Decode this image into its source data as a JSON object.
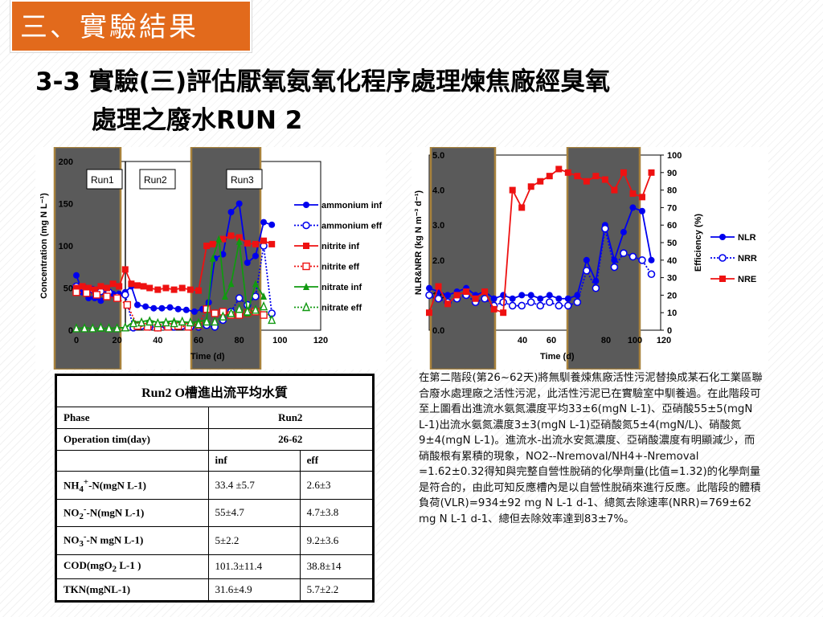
{
  "section": {
    "label": "三、實驗結果"
  },
  "title": {
    "line1": "3-3 實驗(三)評估厭氧氨氧化程序處理煉焦廠經臭氧",
    "line2": "處理之廢水RUN 2"
  },
  "chart_left": {
    "type": "line",
    "ylabel": "Concentration (mg N L⁻¹)",
    "xlabel": "Time (d)",
    "yticks": [
      "200",
      "150",
      "100",
      "50",
      "0"
    ],
    "xticks": [
      "0",
      "20",
      "40",
      "60",
      "80",
      "100",
      "120"
    ],
    "run_labels": [
      "Run1",
      "Run2",
      "Run3"
    ],
    "legend": [
      "ammonium inf",
      "ammonium eff",
      "nitrite inf",
      "nitrite eff",
      "nitrate inf",
      "nitrate eff"
    ],
    "colors": {
      "blue": "#0000ee",
      "red": "#ee1111",
      "green": "#119911"
    },
    "series": [
      {
        "name": "ammonium inf",
        "x": [
          0,
          3,
          6,
          9,
          12,
          15,
          18,
          21,
          24,
          27,
          30,
          34,
          38,
          42,
          46,
          50,
          54,
          58,
          62,
          65,
          68,
          72,
          76,
          80,
          84,
          88,
          92,
          96
        ],
        "values": [
          65,
          45,
          38,
          38,
          35,
          40,
          43,
          43,
          45,
          52,
          30,
          28,
          26,
          26,
          27,
          25,
          24,
          22,
          25,
          33,
          85,
          90,
          140,
          150,
          80,
          88,
          128,
          125
        ]
      },
      {
        "name": "ammonium eff",
        "x": [
          0,
          4,
          8,
          12,
          16,
          20,
          24,
          28,
          32,
          36,
          40,
          44,
          48,
          52,
          56,
          60,
          64,
          68,
          72,
          76,
          80,
          84,
          88,
          92,
          96
        ],
        "values": [
          52,
          50,
          48,
          46,
          45,
          40,
          42,
          3,
          5,
          4,
          3,
          5,
          4,
          5,
          4,
          4,
          6,
          4,
          12,
          22,
          38,
          30,
          40,
          100,
          20
        ]
      },
      {
        "name": "nitrite inf",
        "x": [
          0,
          3,
          6,
          9,
          12,
          15,
          18,
          21,
          24,
          27,
          30,
          33,
          36,
          40,
          44,
          48,
          52,
          56,
          60,
          64,
          67,
          72,
          76,
          80,
          84,
          88,
          92,
          96
        ],
        "values": [
          50,
          52,
          50,
          48,
          52,
          50,
          55,
          52,
          72,
          55,
          53,
          52,
          50,
          48,
          50,
          48,
          50,
          48,
          47,
          100,
          102,
          108,
          112,
          110,
          103,
          102,
          106,
          102
        ]
      },
      {
        "name": "nitrite eff",
        "x": [
          0,
          5,
          10,
          15,
          20,
          25,
          30,
          35,
          40,
          45,
          50,
          55,
          60,
          64,
          68,
          72,
          76,
          80,
          84,
          88,
          92
        ],
        "values": [
          45,
          44,
          42,
          40,
          38,
          30,
          5,
          4,
          3,
          4,
          5,
          4,
          6,
          25,
          20,
          22,
          18,
          18,
          20,
          22,
          18
        ]
      },
      {
        "name": "nitrate inf",
        "x": [
          0,
          4,
          8,
          12,
          16,
          20,
          24,
          28,
          32,
          36,
          40,
          44,
          48,
          52,
          56,
          60,
          64,
          67,
          70,
          73,
          76,
          80,
          84,
          88,
          92
        ],
        "values": [
          2,
          3,
          2,
          2,
          2,
          3,
          3,
          10,
          10,
          12,
          9,
          10,
          11,
          10,
          9,
          10,
          12,
          85,
          108,
          40,
          55,
          105,
          20,
          55,
          40
        ]
      },
      {
        "name": "nitrate eff",
        "x": [
          0,
          4,
          8,
          12,
          16,
          20,
          24,
          28,
          32,
          36,
          40,
          44,
          48,
          52,
          56,
          60,
          64,
          68,
          72,
          76,
          80,
          84,
          88,
          92,
          96
        ],
        "values": [
          2,
          2,
          2,
          3,
          2,
          2,
          3,
          8,
          9,
          10,
          8,
          9,
          8,
          10,
          9,
          7,
          10,
          10,
          16,
          20,
          25,
          22,
          24,
          28,
          12
        ]
      }
    ]
  },
  "chart_right": {
    "type": "line",
    "ylabel": "NLR&NRR (kg N m⁻³ d⁻¹)",
    "y2label": "Efficiency (%)",
    "xlabel": "Time (d)",
    "yticks": [
      "5.0",
      "4.0",
      "3.0",
      "2.0",
      "1.0",
      "0.0"
    ],
    "y2ticks": [
      "100",
      "90",
      "80",
      "70",
      "60",
      "50",
      "40",
      "30",
      "20",
      "10",
      "0"
    ],
    "xticks": [
      "40",
      "60",
      "80",
      "100",
      "120"
    ],
    "legend": [
      "NLR",
      "NRR",
      "NRE"
    ],
    "colors": {
      "blue": "#0000ee",
      "red": "#ee1111"
    },
    "series": [
      {
        "name": "NLR",
        "x": [
          0,
          4,
          8,
          12,
          16,
          20,
          24,
          28,
          32,
          36,
          40,
          44,
          48,
          52,
          56,
          60,
          64,
          68,
          72,
          76,
          80,
          84,
          88,
          92,
          96
        ],
        "values": [
          1.2,
          1.1,
          1.0,
          1.1,
          1.2,
          1.0,
          1.1,
          0.9,
          1.0,
          0.9,
          1.0,
          1.0,
          0.9,
          1.0,
          0.9,
          0.9,
          1.0,
          2.0,
          1.4,
          3.0,
          2.0,
          2.8,
          3.5,
          3.4,
          2.0
        ]
      },
      {
        "name": "NRR",
        "x": [
          0,
          4,
          8,
          12,
          16,
          20,
          24,
          28,
          32,
          36,
          40,
          44,
          48,
          52,
          56,
          60,
          64,
          68,
          72,
          76,
          80,
          84,
          88,
          92,
          96
        ],
        "values": [
          1.0,
          0.9,
          0.8,
          0.9,
          1.0,
          0.8,
          0.9,
          0.7,
          0.8,
          0.7,
          0.7,
          0.8,
          0.7,
          0.8,
          0.7,
          0.7,
          0.8,
          1.7,
          1.2,
          2.9,
          1.8,
          2.2,
          2.1,
          2.0,
          1.6
        ]
      },
      {
        "name": "NRE",
        "x": [
          0,
          4,
          8,
          12,
          16,
          20,
          24,
          28,
          32,
          36,
          40,
          44,
          48,
          52,
          56,
          60,
          64,
          68,
          72,
          76,
          80,
          84,
          88,
          92,
          96
        ],
        "values": [
          10,
          25,
          15,
          20,
          22,
          18,
          22,
          12,
          10,
          80,
          70,
          82,
          85,
          88,
          92,
          90,
          88,
          85,
          88,
          86,
          80,
          90,
          78,
          76,
          90
        ]
      }
    ]
  },
  "table": {
    "caption": "Run2 O槽進出流平均水質",
    "rows": [
      {
        "c1": "Phase",
        "c2": "Run2"
      },
      {
        "c1": "Operation tim(day)",
        "c2": "26-62"
      },
      {
        "c1": "",
        "c2": "inf",
        "c3": "eff"
      },
      {
        "c1a": "NH",
        "s1": "4",
        "p1": "+",
        "c1b": "-N(mgN L-1)",
        "c2": "33.4 ±5.7",
        "c3": "2.6±3"
      },
      {
        "c1a": "NO",
        "s1": "2",
        "p1": "-",
        "c1b": "-N(mgN L-1)",
        "c2": "55±4.7",
        "c3": "4.7±3.8"
      },
      {
        "c1a": "NO",
        "s1": "3",
        "p1": "-",
        "c1b": "-N mgN L-1)",
        "c2": "5±2.2",
        "c3": "9.2±3.6"
      },
      {
        "c1a": "COD(mgO",
        "s1": "2",
        "p1": "",
        "c1b": " L-1 )",
        "c2": "101.3±11.4",
        "c3": "38.8±14"
      },
      {
        "c1": "TKN(mgNL-1)",
        "c2": "31.6±4.9",
        "c3": "5.7±2.2"
      }
    ]
  },
  "description": "在第二階段(第26~62天)將無馴養煉焦廠活性污泥替換成某石化工業區聯合廢水處理廠之活性污泥，此活性污泥已在實驗室中馴養過。在此階段可至上圖看出進流水氨氮濃度平均33±6(mgN L-1)、亞硝酸55±5(mgN L-1)出流水氨氮濃度3±3(mgN L-1)亞硝酸氮5±4(mgN/L)、硝酸氮9±4(mgN L-1)。進流水-出流水安氮濃度、亞硝酸濃度有明顯減少，而硝酸根有累積的現象，NO2--Nremoval/NH4+-Nremoval =1.62±0.32得知與完整自營性脫硝的化學劑量(比值=1.32)的化學劑量是符合的，由此可知反應槽內是以自營性脫硝來進行反應。此階段的體積負荷(VLR)=934±92 mg N L-1 d-1、總氮去除速率(NRR)=769±62 mg N L-1 d-1、總但去除效率達到83±7%。"
}
